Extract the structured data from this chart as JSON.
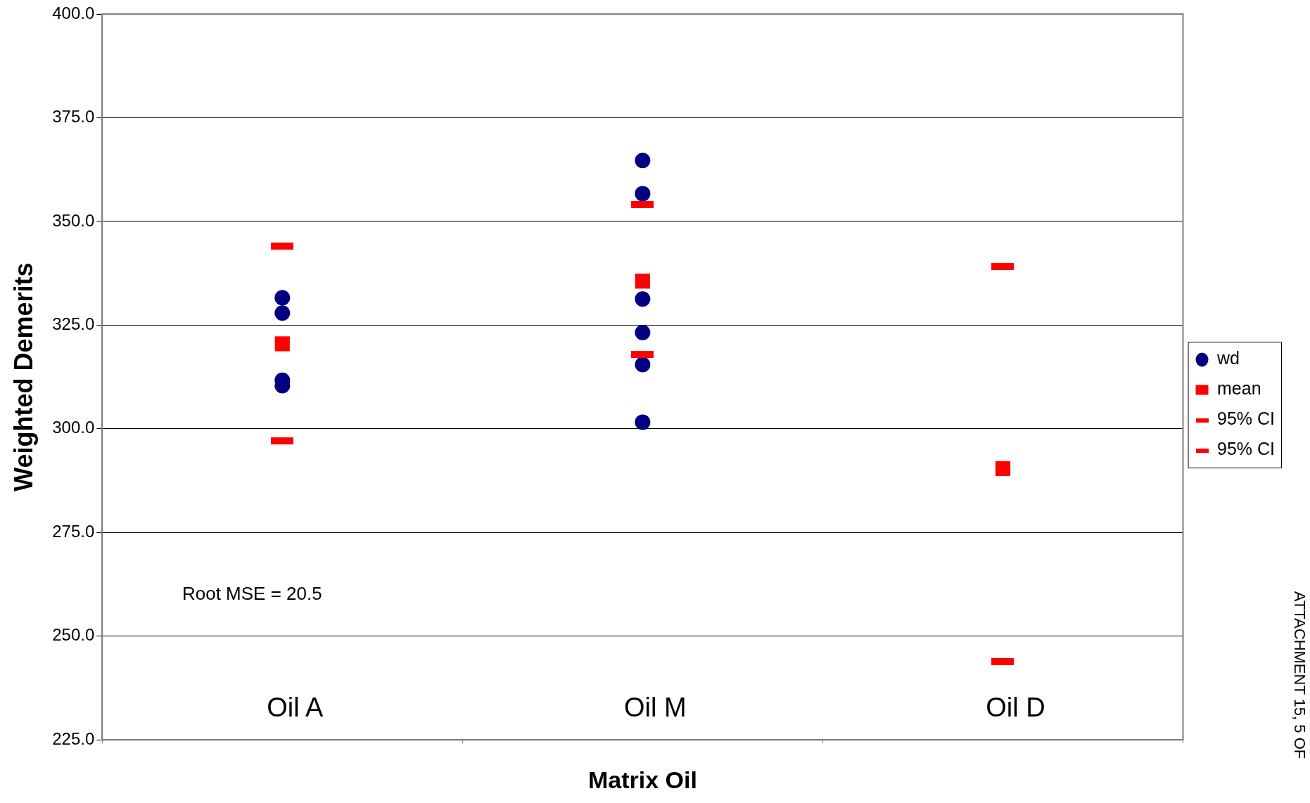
{
  "chart_data": {
    "type": "scatter",
    "xlabel": "Matrix Oil",
    "ylabel": "Weighted Demerits",
    "categories": [
      "Oil A",
      "Oil M",
      "Oil D"
    ],
    "ylim": [
      225,
      400
    ],
    "yticks": [
      {
        "value": 225,
        "label": "225.0"
      },
      {
        "value": 250,
        "label": "250.0"
      },
      {
        "value": 275,
        "label": "275.0"
      },
      {
        "value": 300,
        "label": "300.0"
      },
      {
        "value": 325,
        "label": "325.0"
      },
      {
        "value": 350,
        "label": "350.0"
      },
      {
        "value": 375,
        "label": "375.0"
      },
      {
        "value": 400,
        "label": "400.0"
      }
    ],
    "grid": "y",
    "legend": "right",
    "annotations": [
      "Root MSE = 20.5",
      "ATTACHMENT 15, 5 OF"
    ],
    "series": [
      {
        "name": "wd",
        "color": "#000080",
        "marker": "circle",
        "x": [
          "Oil A",
          "Oil A",
          "Oil A",
          "Oil A",
          "Oil M",
          "Oil M",
          "Oil M",
          "Oil M",
          "Oil M",
          "Oil M"
        ],
        "values": [
          331.6,
          327.9,
          311.7,
          310.4,
          364.7,
          356.7,
          331.3,
          323.2,
          315.5,
          301.6
        ]
      },
      {
        "name": "mean",
        "color": "#ff0000",
        "marker": "square",
        "values": [
          320.5,
          335.6,
          290.4
        ]
      },
      {
        "name": "95% CI",
        "color": "#ff0000",
        "values": [
          344.1,
          354.0,
          339.1
        ]
      },
      {
        "name": "95% CI",
        "color": "#ff0000",
        "values": [
          297.1,
          318.0,
          243.9
        ]
      }
    ]
  }
}
